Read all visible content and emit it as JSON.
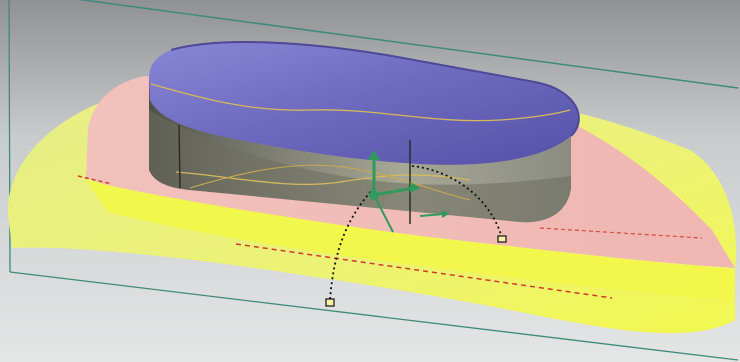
{
  "viewport": {
    "background_top": "#8f9193",
    "background_mid": "#c9cccd",
    "background_bottom": "#e4e6e6"
  },
  "colors": {
    "top_face": "#6f6bc0",
    "top_face_highlight": "#8a86d6",
    "side_face": "#8b8d84",
    "side_face_dark": "#5e6056",
    "side_highlight": "#a6a794",
    "pink_region": "#f0b6b2",
    "yellow_region": "#ecf276",
    "yellow_bright": "#f3f850",
    "frame_line": "#3f8a7a",
    "red_dashed": "#d13a2b",
    "black_dotted": "#111111",
    "green_gizmo": "#2f9a5b",
    "border": "#111111"
  },
  "icons": {
    "move_gizmo": "move-gizmo-icon",
    "arc_handle": "arc-handle-icon",
    "rotation_handle": "rotation-handle-icon"
  }
}
